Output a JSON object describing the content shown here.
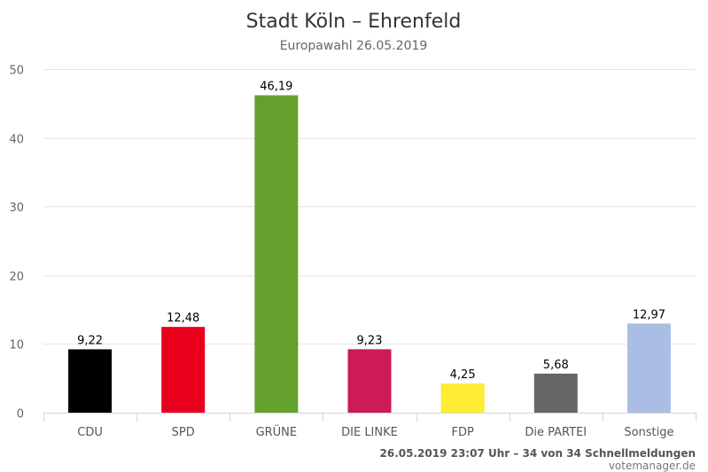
{
  "chart_data": {
    "type": "bar",
    "title": "Stadt Köln – Ehrenfeld",
    "subtitle": "Europawahl 26.05.2019",
    "xlabel": "",
    "ylabel": "",
    "ylim": [
      0,
      50
    ],
    "yticks": [
      0,
      10,
      20,
      30,
      40,
      50
    ],
    "grid": true,
    "legend": "none",
    "categories": [
      "CDU",
      "SPD",
      "GRÜNE",
      "DIE LINKE",
      "FDP",
      "Die PARTEI",
      "Sonstige"
    ],
    "values": [
      9.22,
      12.48,
      46.19,
      9.23,
      4.25,
      5.68,
      12.97
    ],
    "data_labels": [
      "9,22",
      "12,48",
      "46,19",
      "9,23",
      "4,25",
      "5,68",
      "12,97"
    ],
    "colors": [
      "#000000",
      "#e8001c",
      "#64a12d",
      "#cc1b56",
      "#feeb34",
      "#666666",
      "#aabde3"
    ]
  },
  "credits": {
    "line1": "26.05.2019 23:07 Uhr – 34 von 34 Schnellmeldungen",
    "line2": "votemanager.de"
  },
  "colors": {
    "gridline": "#e6e6e6",
    "axis": "#ccd6eb"
  }
}
